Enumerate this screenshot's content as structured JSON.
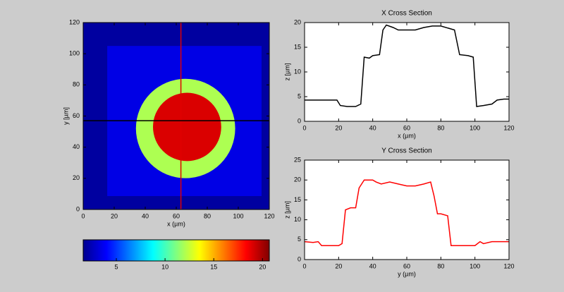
{
  "chart_data": [
    {
      "type": "heatmap",
      "xlabel": "x (µm)",
      "ylabel": "y [µm]",
      "xlim": [
        0,
        120
      ],
      "ylim": [
        0,
        120
      ],
      "xticks": [
        0,
        20,
        40,
        60,
        80,
        100,
        120
      ],
      "yticks": [
        0,
        20,
        40,
        60,
        80,
        100,
        120
      ],
      "clim": [
        1.6,
        20.7
      ],
      "cticks": [
        5,
        10,
        15,
        20
      ],
      "colormap": "jet",
      "regions": [
        {
          "shape": "rect",
          "x": [
            0,
            120
          ],
          "y": [
            0,
            120
          ],
          "value": 2.2
        },
        {
          "shape": "rect",
          "x": [
            15.5,
            115
          ],
          "y": [
            8.6,
            105
          ],
          "value": 3.5
        },
        {
          "shape": "circle",
          "cx": 66,
          "cy": 52,
          "r": 32,
          "value": 12
        },
        {
          "shape": "circle",
          "cx": 67,
          "cy": 53,
          "r": 22,
          "value": 19
        }
      ],
      "crosshair": {
        "x": 63,
        "y": 57,
        "x_color": "#e00000",
        "y_color": "#000000"
      }
    },
    {
      "type": "line",
      "title": "X Cross Section",
      "xlabel": "x (µm)",
      "ylabel": "z [µm]",
      "xlim": [
        0,
        120
      ],
      "ylim": [
        0,
        20
      ],
      "xticks": [
        0,
        20,
        40,
        60,
        80,
        100,
        120
      ],
      "yticks": [
        0,
        5,
        10,
        15,
        20
      ],
      "color": "#000000",
      "x": [
        0,
        5,
        10,
        15,
        19,
        21,
        25,
        30,
        33,
        35,
        38,
        40,
        44,
        46,
        48,
        52,
        55,
        60,
        65,
        70,
        75,
        80,
        85,
        88,
        91,
        96,
        99,
        101,
        105,
        110,
        113,
        117,
        120
      ],
      "values": [
        4.3,
        4.3,
        4.3,
        4.3,
        4.3,
        3.2,
        3,
        3,
        3.5,
        13,
        12.8,
        13.3,
        13.5,
        18.5,
        19.5,
        19,
        18.5,
        18.5,
        18.5,
        19,
        19.3,
        19.3,
        18.8,
        18.5,
        13.5,
        13.3,
        13,
        3,
        3.2,
        3.5,
        4.3,
        4.5,
        4.5
      ]
    },
    {
      "type": "line",
      "title": "Y Cross Section",
      "xlabel": "y (µm)",
      "ylabel": "z [µm]",
      "xlim": [
        0,
        120
      ],
      "ylim": [
        0,
        25
      ],
      "xticks": [
        0,
        20,
        40,
        60,
        80,
        100,
        120
      ],
      "yticks": [
        0,
        5,
        10,
        15,
        20,
        25
      ],
      "color": "#ff0000",
      "x": [
        0,
        5,
        8,
        10,
        15,
        20,
        22,
        24,
        27,
        30,
        32,
        35,
        40,
        42,
        45,
        50,
        55,
        60,
        65,
        70,
        74,
        76,
        78,
        80,
        84,
        86,
        90,
        100,
        103,
        105,
        110,
        120
      ],
      "values": [
        4.5,
        4.3,
        4.5,
        3.5,
        3.5,
        3.5,
        4,
        12.5,
        13,
        13,
        18,
        20,
        20,
        19.5,
        19,
        19.5,
        19,
        18.5,
        18.5,
        19,
        19.5,
        16,
        11.5,
        11.5,
        11,
        3.5,
        3.5,
        3.5,
        4.5,
        4,
        4.5,
        4.5
      ]
    }
  ]
}
